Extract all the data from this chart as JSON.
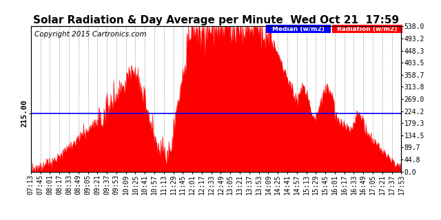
{
  "title": "Solar Radiation & Day Average per Minute  Wed Oct 21  17:59",
  "copyright": "Copyright 2015 Cartronics.com",
  "median_value": 215.0,
  "ymax": 538.0,
  "ymin": 0.0,
  "fill_color": "#FF0000",
  "line_color": "#0000FF",
  "background_color": "#FFFFFF",
  "grid_color": "#888888",
  "legend_median_bg": "#0000FF",
  "legend_radiation_bg": "#FF0000",
  "legend_median_text": "Median (w/m2)",
  "legend_radiation_text": "Radiation (w/m2)",
  "xtick_labels": [
    "07:13",
    "07:45",
    "08:01",
    "08:17",
    "08:33",
    "08:49",
    "09:05",
    "09:21",
    "09:37",
    "09:53",
    "10:09",
    "10:25",
    "10:41",
    "10:57",
    "11:13",
    "11:29",
    "11:45",
    "12:01",
    "12:17",
    "12:33",
    "12:49",
    "13:05",
    "13:21",
    "13:37",
    "13:53",
    "14:09",
    "14:25",
    "14:41",
    "14:57",
    "15:13",
    "15:29",
    "15:45",
    "16:01",
    "16:17",
    "16:33",
    "16:49",
    "17:05",
    "17:21",
    "17:37",
    "17:53"
  ],
  "ylabel_right_values": [
    538.0,
    493.2,
    448.3,
    403.5,
    358.7,
    313.8,
    269.0,
    224.2,
    179.3,
    134.5,
    89.7,
    44.8,
    0.0
  ],
  "title_fontsize": 11,
  "tick_fontsize": 7,
  "copyright_fontsize": 7.5,
  "label_fontsize": 8
}
